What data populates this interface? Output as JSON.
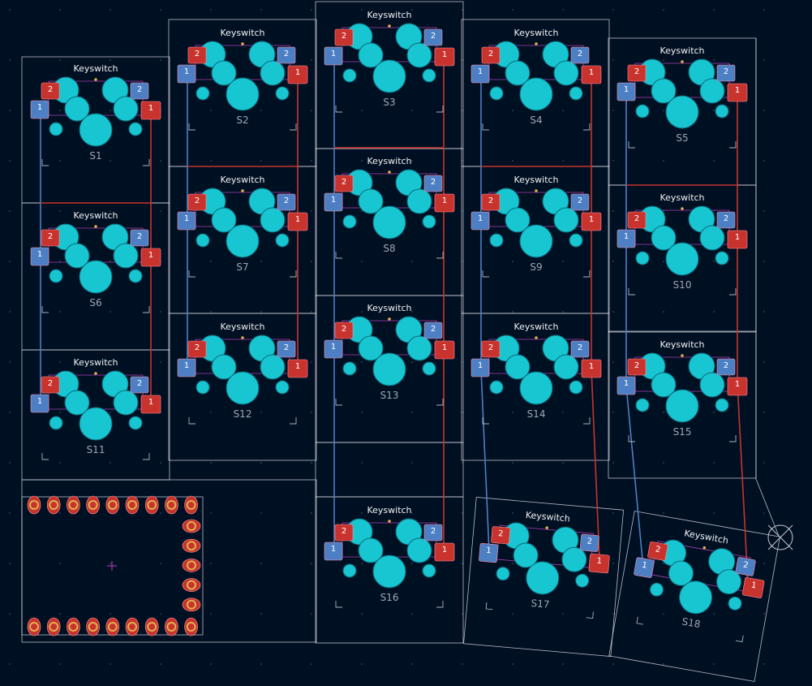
{
  "app": {
    "footprint_label": "Keyswitch",
    "pad_labels": [
      "1",
      "2"
    ]
  },
  "switches": [
    {
      "ref": "S1",
      "mirror": "S1"
    },
    {
      "ref": "S2",
      "mirror": "S2"
    },
    {
      "ref": "S3",
      "mirror": "S3"
    },
    {
      "ref": "S4",
      "mirror": "S4"
    },
    {
      "ref": "S5",
      "mirror": "S5"
    },
    {
      "ref": "S6",
      "mirror": "S6"
    },
    {
      "ref": "S7",
      "mirror": "S7"
    },
    {
      "ref": "S8",
      "mirror": "S8"
    },
    {
      "ref": "S9",
      "mirror": "S9"
    },
    {
      "ref": "S10",
      "mirror": "S10"
    },
    {
      "ref": "S11",
      "mirror": "S11"
    },
    {
      "ref": "S12",
      "mirror": "S12"
    },
    {
      "ref": "S13",
      "mirror": "S13"
    },
    {
      "ref": "S14",
      "mirror": "S14"
    },
    {
      "ref": "S15",
      "mirror": "S15"
    },
    {
      "ref": "S16",
      "mirror": "S16"
    },
    {
      "ref": "S17",
      "mirror": "S17"
    },
    {
      "ref": "S18",
      "mirror": "S18"
    }
  ],
  "colors": {
    "background": "#001023",
    "copper_front": "#c8332d",
    "copper_back": "#4d7fc4",
    "pad": "#18c6d2",
    "outline": "#d8d8e0",
    "silk_front": "#f2f2f2",
    "silk_back": "#9ea6b4",
    "courtyard": "#c040c0",
    "drill_ring": "#e0b050"
  }
}
